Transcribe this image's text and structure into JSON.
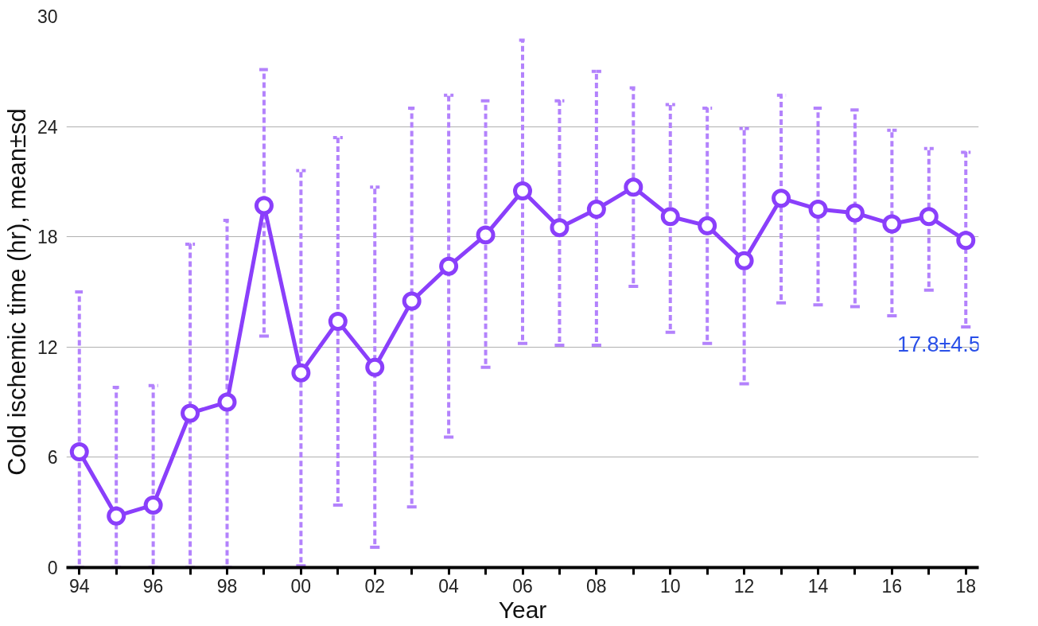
{
  "chart_data": {
    "type": "line",
    "xlabel": "Year",
    "ylabel": "Cold ischemic time (hr), mean±sd",
    "categories": [
      "94",
      null,
      "96",
      null,
      "98",
      null,
      "00",
      null,
      "02",
      null,
      "04",
      null,
      "06",
      null,
      "08",
      null,
      "10",
      null,
      "12",
      null,
      "14",
      null,
      "16",
      null,
      "18"
    ],
    "series": [
      {
        "color": "#8a3ffb",
        "values": [
          6.3,
          2.8,
          3.4,
          8.4,
          9.0,
          19.7,
          10.6,
          13.4,
          10.9,
          14.5,
          16.4,
          18.1,
          20.5,
          18.5,
          19.5,
          20.7,
          19.1,
          18.6,
          16.7,
          20.1,
          19.5,
          19.3,
          18.7,
          19.1,
          17.8
        ],
        "errors": [
          [
            0,
            15.0
          ],
          [
            0,
            9.8
          ],
          [
            0,
            9.9
          ],
          [
            0,
            17.6
          ],
          [
            0,
            18.9
          ],
          [
            12.6,
            27.1
          ],
          [
            0.1,
            21.6
          ],
          [
            3.4,
            23.4
          ],
          [
            1.1,
            20.7
          ],
          [
            3.3,
            25.0
          ],
          [
            7.1,
            25.7
          ],
          [
            10.9,
            25.4
          ],
          [
            12.2,
            28.7
          ],
          [
            12.1,
            25.4
          ],
          [
            12.1,
            27.0
          ],
          [
            15.3,
            26.1
          ],
          [
            12.8,
            25.2
          ],
          [
            12.2,
            25.0
          ],
          [
            10.0,
            23.9
          ],
          [
            14.4,
            25.7
          ],
          [
            14.3,
            25.0
          ],
          [
            14.2,
            24.9
          ],
          [
            13.7,
            23.8
          ],
          [
            15.1,
            22.8
          ],
          [
            13.1,
            22.6
          ]
        ]
      }
    ],
    "ylim": [
      0,
      30
    ],
    "yticks": [
      0,
      6,
      12,
      18,
      24,
      30
    ],
    "grid": "y",
    "marker": "circle",
    "line_style": "solid",
    "annotations": [
      "17.8±4.5"
    ]
  }
}
